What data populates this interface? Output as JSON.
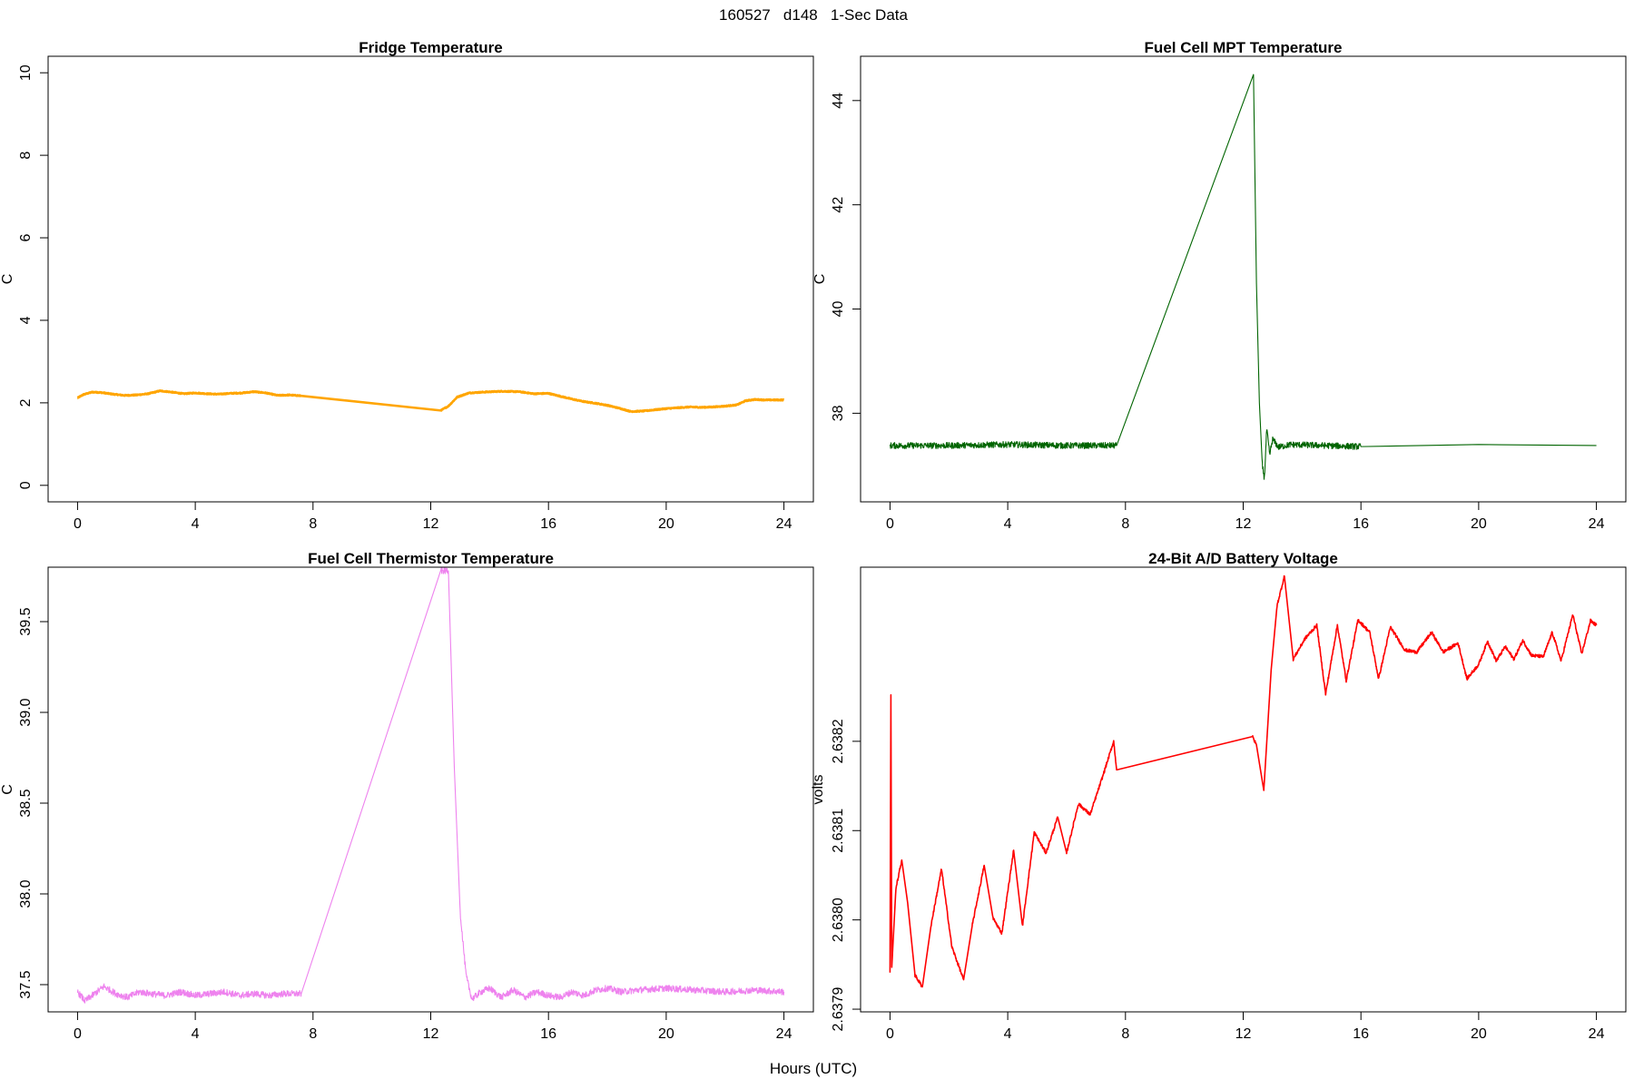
{
  "figure": {
    "suptitle": "160527   d148   1-Sec Data",
    "xlabel": "Hours (UTC)"
  },
  "chart_data": [
    {
      "type": "line",
      "title": "Fridge Temperature",
      "ylabel": "C",
      "xlim": [
        -1,
        25
      ],
      "ylim": [
        -0.4,
        10.4
      ],
      "xticks": [
        0,
        4,
        8,
        12,
        16,
        20,
        24
      ],
      "yticks": [
        0,
        2,
        4,
        6,
        8,
        10
      ],
      "ytick_labels": [
        "0",
        "2",
        "4",
        "6",
        "8",
        "10"
      ],
      "color": "#ffa500",
      "line_width": 2.6,
      "noise": 0.012,
      "series": [
        {
          "x": [
            0,
            0.2,
            0.5,
            0.8,
            1.2,
            1.6,
            2.0,
            2.4,
            2.8,
            3.2,
            3.6,
            4.0,
            4.4,
            4.8,
            5.2,
            5.6,
            6.0,
            6.4,
            6.8,
            7.2,
            7.6,
            12.35,
            12.6,
            12.9,
            13.3,
            13.8,
            14.4,
            15.0,
            15.5,
            16.0,
            16.4,
            16.8,
            17.2,
            17.6,
            18.0,
            18.4,
            18.8,
            19.2,
            19.6,
            20.0,
            20.4,
            20.8,
            21.2,
            21.6,
            22.0,
            22.4,
            22.7,
            23.0,
            23.4,
            23.7,
            24.0
          ],
          "y": [
            2.12,
            2.2,
            2.26,
            2.25,
            2.21,
            2.18,
            2.19,
            2.22,
            2.29,
            2.26,
            2.22,
            2.24,
            2.22,
            2.21,
            2.23,
            2.24,
            2.27,
            2.24,
            2.18,
            2.19,
            2.17,
            1.82,
            1.92,
            2.14,
            2.24,
            2.26,
            2.28,
            2.27,
            2.22,
            2.23,
            2.16,
            2.09,
            2.03,
            1.99,
            1.94,
            1.87,
            1.79,
            1.8,
            1.83,
            1.86,
            1.88,
            1.9,
            1.89,
            1.9,
            1.92,
            1.95,
            2.05,
            2.08,
            2.07,
            2.07,
            2.07
          ]
        }
      ]
    },
    {
      "type": "line",
      "title": "Fuel Cell MPT Temperature",
      "ylabel": "C",
      "xlim": [
        -1,
        25
      ],
      "ylim": [
        36.3,
        44.85
      ],
      "xticks": [
        0,
        4,
        8,
        12,
        16,
        20,
        24
      ],
      "yticks": [
        38,
        40,
        42,
        44
      ],
      "ytick_labels": [
        "38",
        "40",
        "42",
        "44"
      ],
      "color": "#006400",
      "line_width": 1.1,
      "noise": 0.06,
      "series": [
        {
          "x": [
            0,
            2,
            4,
            6,
            7.7,
            12.35,
            12.45,
            12.55,
            12.65,
            12.72,
            12.8,
            12.9,
            13.0,
            13.2,
            13.6,
            16,
            20,
            24
          ],
          "y": [
            37.38,
            37.38,
            37.4,
            37.38,
            37.38,
            44.5,
            40.5,
            38.2,
            37.0,
            36.75,
            37.7,
            37.2,
            37.5,
            37.35,
            37.4,
            37.36,
            37.4,
            37.38
          ]
        }
      ]
    },
    {
      "type": "line",
      "title": "Fuel Cell Thermistor Temperature",
      "ylabel": "C",
      "xlim": [
        -1,
        25
      ],
      "ylim": [
        37.35,
        39.8
      ],
      "xticks": [
        0,
        4,
        8,
        12,
        16,
        20,
        24
      ],
      "yticks": [
        37.5,
        38.0,
        38.5,
        39.0,
        39.5
      ],
      "ytick_labels": [
        "37.5",
        "38.0",
        "38.5",
        "39.0",
        "39.5"
      ],
      "color": "#ee82ee",
      "line_width": 1.1,
      "noise": 0.018,
      "series": [
        {
          "x": [
            0,
            0.25,
            0.5,
            0.9,
            1.3,
            1.7,
            2.1,
            2.5,
            3.0,
            3.5,
            4.0,
            4.5,
            5.0,
            5.5,
            6.0,
            6.5,
            7.0,
            7.6,
            12.35,
            12.5,
            12.6,
            12.8,
            13.0,
            13.2,
            13.4,
            13.7,
            14.0,
            14.4,
            14.8,
            15.2,
            15.6,
            16.0,
            16.4,
            16.8,
            17.2,
            17.6,
            18.0,
            18.5,
            19.0,
            20.0,
            21.0,
            22.0,
            23.0,
            24.0
          ],
          "y": [
            37.46,
            37.41,
            37.44,
            37.49,
            37.45,
            37.43,
            37.46,
            37.45,
            37.44,
            37.46,
            37.44,
            37.45,
            37.46,
            37.44,
            37.45,
            37.44,
            37.45,
            37.45,
            39.78,
            39.78,
            39.78,
            38.7,
            37.9,
            37.55,
            37.42,
            37.46,
            37.48,
            37.43,
            37.47,
            37.43,
            37.46,
            37.44,
            37.43,
            37.46,
            37.44,
            37.47,
            37.48,
            37.46,
            37.47,
            37.48,
            37.47,
            37.46,
            37.47,
            37.46
          ]
        }
      ]
    },
    {
      "type": "line",
      "title": "24-Bit A/D Battery Voltage",
      "ylabel": "volts",
      "xlim": [
        -1,
        25
      ],
      "ylim": [
        2.637897,
        2.638395
      ],
      "xticks": [
        0,
        4,
        8,
        12,
        16,
        20,
        24
      ],
      "yticks": [
        2.6379,
        2.638,
        2.6381,
        2.6382
      ],
      "ytick_labels": [
        "2.6379",
        "2.6380",
        "2.6381",
        "2.6382"
      ],
      "color": "#ff0000",
      "line_width": 1.6,
      "noise": 1.8e-06,
      "series": [
        {
          "x": [
            0,
            0.03,
            0.06,
            0.2,
            0.4,
            0.6,
            0.85,
            1.1,
            1.4,
            1.75,
            2.1,
            2.5,
            2.8,
            3.2,
            3.5,
            3.8,
            4.2,
            4.5,
            4.9,
            5.3,
            5.7,
            6.0,
            6.4,
            6.8,
            7.2,
            7.6,
            7.7,
            12.3,
            12.45,
            12.7,
            12.95,
            13.15,
            13.4,
            13.7,
            14.1,
            14.5,
            14.8,
            15.2,
            15.5,
            15.9,
            16.3,
            16.6,
            17.0,
            17.5,
            17.9,
            18.4,
            18.8,
            19.3,
            19.6,
            20.0,
            20.3,
            20.6,
            20.9,
            21.2,
            21.5,
            21.8,
            22.2,
            22.5,
            22.8,
            23.2,
            23.5,
            23.8,
            24.0
          ],
          "y": [
            2.637941,
            2.638252,
            2.637947,
            2.638035,
            2.638067,
            2.638019,
            2.637938,
            2.637925,
            2.637995,
            2.638057,
            2.63797,
            2.637933,
            2.637995,
            2.638061,
            2.638002,
            2.637985,
            2.638078,
            2.637993,
            2.638098,
            2.638075,
            2.638115,
            2.638075,
            2.63813,
            2.638118,
            2.638158,
            2.6382,
            2.638168,
            2.638206,
            2.638196,
            2.638145,
            2.63828,
            2.638352,
            2.638385,
            2.638292,
            2.638315,
            2.63833,
            2.638253,
            2.63833,
            2.638268,
            2.638336,
            2.638322,
            2.63827,
            2.638328,
            2.638302,
            2.6383,
            2.638322,
            2.6383,
            2.63831,
            2.63827,
            2.638286,
            2.638312,
            2.63829,
            2.638306,
            2.638292,
            2.638313,
            2.638296,
            2.638295,
            2.638322,
            2.63829,
            2.638342,
            2.638298,
            2.638335,
            2.63833
          ]
        }
      ]
    }
  ]
}
